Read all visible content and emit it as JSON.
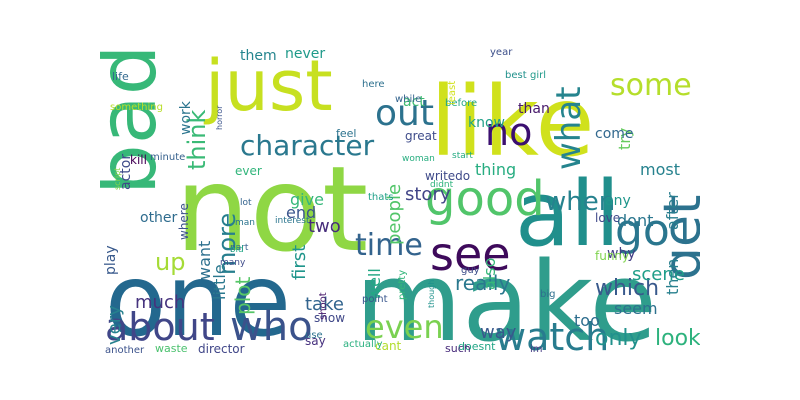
{
  "chart_data": {
    "type": "wordcloud",
    "words": [
      {
        "text": "not",
        "color": "#8fd744"
      },
      {
        "text": "make",
        "color": "#2f9d8c"
      },
      {
        "text": "one",
        "color": "#23688e"
      },
      {
        "text": "like",
        "color": "#d0e11c"
      },
      {
        "text": "all",
        "color": "#208f8c"
      },
      {
        "text": "just",
        "color": "#c7e020"
      },
      {
        "text": "bad",
        "color": "#37b878"
      },
      {
        "text": "good",
        "color": "#51c56a"
      },
      {
        "text": "see",
        "color": "#3e0a5b"
      },
      {
        "text": "get",
        "color": "#2c728e"
      },
      {
        "text": "who",
        "color": "#3b528b"
      },
      {
        "text": "about",
        "color": "#404688"
      },
      {
        "text": "watch",
        "color": "#287c8e"
      },
      {
        "text": "even",
        "color": "#7ad151"
      },
      {
        "text": "go",
        "color": "#2a768e"
      },
      {
        "text": "out",
        "color": "#2c728e"
      },
      {
        "text": "some",
        "color": "#b5de2b"
      },
      {
        "text": "what",
        "color": "#25848e"
      },
      {
        "text": "no",
        "color": "#3b0f70"
      },
      {
        "text": "time",
        "color": "#33638d"
      },
      {
        "text": "character",
        "color": "#2a788e"
      },
      {
        "text": "when",
        "color": "#26828e"
      },
      {
        "text": "think",
        "color": "#3aba76"
      },
      {
        "text": "more",
        "color": "#277f8e"
      },
      {
        "text": "up",
        "color": "#a5db36"
      },
      {
        "text": "only",
        "color": "#21918c"
      },
      {
        "text": "look",
        "color": "#2db27d"
      },
      {
        "text": "really",
        "color": "#2a788e"
      },
      {
        "text": "which",
        "color": "#38598c"
      },
      {
        "text": "scene",
        "color": "#1f9e89"
      },
      {
        "text": "much",
        "color": "#46337e"
      },
      {
        "text": "plot",
        "color": "#56c667"
      },
      {
        "text": "want",
        "color": "#2d708e"
      },
      {
        "text": "little",
        "color": "#2a788e"
      },
      {
        "text": "very",
        "color": "#26818e"
      },
      {
        "text": "way",
        "color": "#38588c"
      },
      {
        "text": "story",
        "color": "#414487"
      },
      {
        "text": "people",
        "color": "#52c569"
      },
      {
        "text": "first",
        "color": "#1f958b"
      },
      {
        "text": "take",
        "color": "#32648e"
      },
      {
        "text": "two",
        "color": "#472d7b"
      },
      {
        "text": "end",
        "color": "#3a548c"
      },
      {
        "text": "give",
        "color": "#35b779"
      },
      {
        "text": "well",
        "color": "#22a884"
      },
      {
        "text": "also",
        "color": "#35b779"
      },
      {
        "text": "too",
        "color": "#2e6e8e"
      },
      {
        "text": "seem",
        "color": "#2d718e"
      },
      {
        "text": "then",
        "color": "#27808e"
      },
      {
        "text": "after",
        "color": "#287d8e"
      },
      {
        "text": "dont",
        "color": "#2a768e"
      },
      {
        "text": "any",
        "color": "#1f968b"
      },
      {
        "text": "why",
        "color": "#433e85"
      },
      {
        "text": "try",
        "color": "#65cb5e"
      },
      {
        "text": "most",
        "color": "#26828e"
      },
      {
        "text": "thing",
        "color": "#27ad81"
      },
      {
        "text": "know",
        "color": "#1fa088"
      },
      {
        "text": "than",
        "color": "#481a6c"
      },
      {
        "text": "come",
        "color": "#31688e"
      },
      {
        "text": "act",
        "color": "#40bd72"
      },
      {
        "text": "them",
        "color": "#25858e"
      },
      {
        "text": "never",
        "color": "#1f9a8a"
      },
      {
        "text": "work",
        "color": "#2b758e"
      },
      {
        "text": "actor",
        "color": "#3e4a89"
      },
      {
        "text": "other",
        "color": "#2f6c8e"
      },
      {
        "text": "where",
        "color": "#3b528b"
      },
      {
        "text": "play",
        "color": "#38598c"
      },
      {
        "text": "show",
        "color": "#3f4788"
      },
      {
        "text": "say",
        "color": "#46307e"
      },
      {
        "text": "director",
        "color": "#404688"
      },
      {
        "text": "waste",
        "color": "#4ac16d"
      },
      {
        "text": "another",
        "color": "#3b528b"
      },
      {
        "text": "life",
        "color": "#31688e"
      },
      {
        "text": "something",
        "color": "#b8de29"
      },
      {
        "text": "ever",
        "color": "#31b57b"
      },
      {
        "text": "kill",
        "color": "#440154"
      },
      {
        "text": "minute",
        "color": "#35608d"
      },
      {
        "text": "script",
        "color": "#86d549"
      },
      {
        "text": "horror",
        "color": "#3a538b"
      },
      {
        "text": "part",
        "color": "#355f8d"
      },
      {
        "text": "man",
        "color": "#2b748e"
      },
      {
        "text": "lot",
        "color": "#33638d"
      },
      {
        "text": "old",
        "color": "#22a785"
      },
      {
        "text": "many",
        "color": "#3e4a89"
      },
      {
        "text": "interest",
        "color": "#2b758e"
      },
      {
        "text": "feel",
        "color": "#2c738e"
      },
      {
        "text": "great",
        "color": "#3e4c8a"
      },
      {
        "text": "here",
        "color": "#2d708e"
      },
      {
        "text": "thats",
        "color": "#1fa088"
      },
      {
        "text": "make",
        "color": "#2f9d8c"
      },
      {
        "text": "pretty",
        "color": "#33b67a"
      },
      {
        "text": "though",
        "color": "#20928c"
      },
      {
        "text": "guy",
        "color": "#3d4e8a"
      },
      {
        "text": "big",
        "color": "#2e6f8e"
      },
      {
        "text": "love",
        "color": "#3f4889"
      },
      {
        "text": "funny",
        "color": "#7fd34e"
      },
      {
        "text": "woman",
        "color": "#28ae80"
      },
      {
        "text": "start",
        "color": "#25ab82"
      },
      {
        "text": "before",
        "color": "#21a585"
      },
      {
        "text": "while",
        "color": "#33638d"
      },
      {
        "text": "year",
        "color": "#3c4f8a"
      },
      {
        "text": "best",
        "color": "#21918c"
      },
      {
        "text": "girl",
        "color": "#1f9a8a"
      },
      {
        "text": "cant",
        "color": "#b2dd2d"
      },
      {
        "text": "doesnt",
        "color": "#21a585"
      },
      {
        "text": "such",
        "color": "#472a7a"
      },
      {
        "text": "im",
        "color": "#443983"
      },
      {
        "text": "actually",
        "color": "#2ab07f"
      },
      {
        "text": "point",
        "color": "#39568c"
      },
      {
        "text": "use",
        "color": "#2c728e"
      },
      {
        "text": "shoot",
        "color": "#48196b"
      },
      {
        "text": "didnt",
        "color": "#2eb37c"
      },
      {
        "text": "writedo",
        "color": "#3e4989"
      },
      {
        "text": "least",
        "color": "#d2e21b"
      },
      {
        "text": "real",
        "color": "#1f9f88"
      }
    ]
  }
}
